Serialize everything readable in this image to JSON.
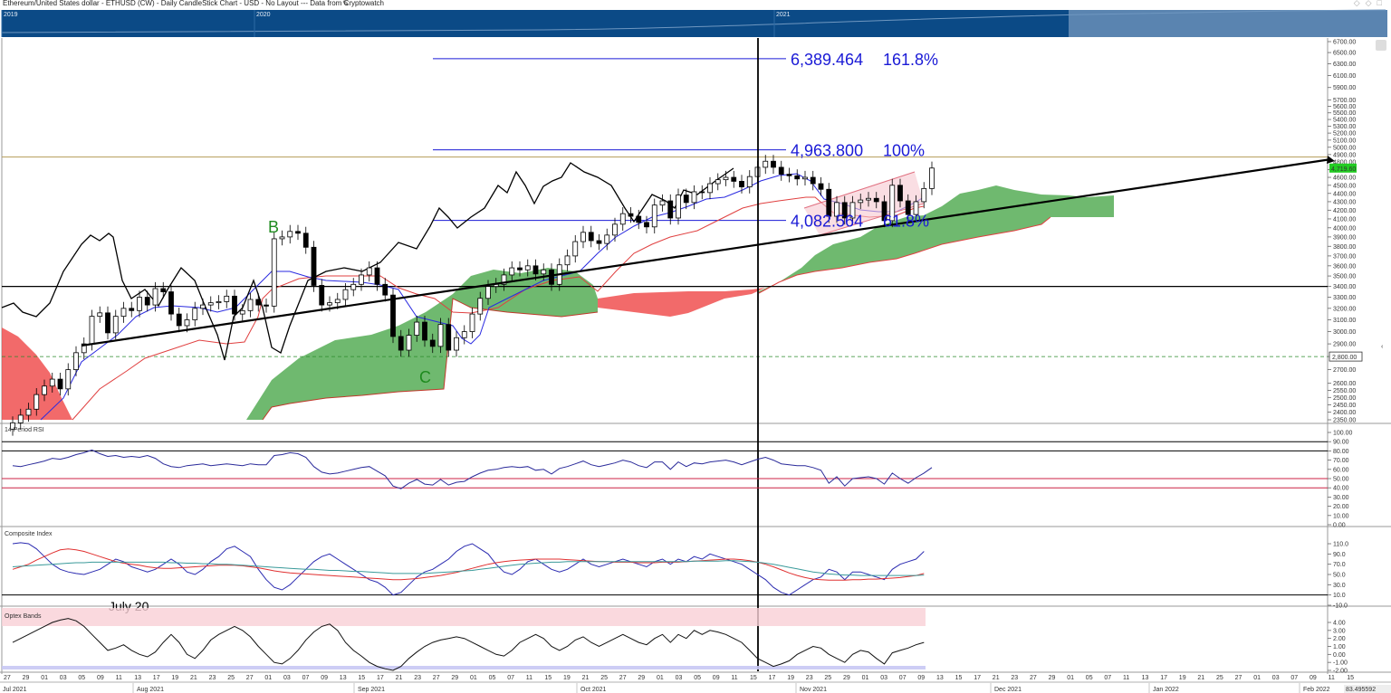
{
  "header": {
    "title": "Ethereum/United States dollar - ETHUSD (CW) - Daily CandleStick Chart - USD - No Layout --- Data from Cryptowatch"
  },
  "navigator": {
    "years": [
      "2019",
      "2020",
      "2021"
    ]
  },
  "price_pane": {
    "current_price_label": "4,719.60",
    "horizontal_line_label": "2,800.00",
    "annotations": {
      "fib1_price": "6,389.464",
      "fib1_pct": "161.8%",
      "fib2_price": "4,963.800",
      "fib2_pct": "100%",
      "fib3_price": "4,082.564",
      "fib3_pct": "61.8%",
      "wave_b": "B",
      "wave_c": "C"
    }
  },
  "rsi_pane": {
    "title": "14 Period RSI"
  },
  "composite_pane": {
    "title": "Composite Index",
    "note": "July 20"
  },
  "optex_pane": {
    "title": "Optex Bands"
  },
  "corner_readout": "83.495592",
  "colors": {
    "candle_up": "#ffffff",
    "candle_down": "#000000",
    "kijun": "#e04040",
    "tenkan": "#2a2ae0",
    "chikou": "#000000",
    "cloud_bull": "#3fa23f",
    "cloud_bear": "#f05050",
    "fib": "#1a1ad6",
    "rsi_line": "#2a2a9a",
    "composite_line": "#2a2ab0",
    "fast_ma": "#e03030",
    "slow_ma": "#3a9a9a"
  },
  "chart_data": [
    {
      "type": "candlestick",
      "title": "ETHUSD Daily",
      "ylim": [
        2350,
        6700
      ],
      "y_ticks": [
        2350,
        2400,
        2450,
        2500,
        2550,
        2600,
        2700,
        2800,
        2900,
        3000,
        3100,
        3200,
        3300,
        3400,
        3500,
        3600,
        3700,
        3800,
        3900,
        4000,
        4100,
        4200,
        4300,
        4400,
        4500,
        4600,
        4700,
        4800,
        4900,
        5000,
        5100,
        5200,
        5300,
        5400,
        5500,
        5600,
        5700,
        5900,
        6100,
        6300,
        6500,
        6700
      ],
      "y_tick_labels": [
        "2350.00",
        "2400.00",
        "2450.00",
        "2500.00",
        "2550.00",
        "2600.00",
        "2700.00",
        "2800.00",
        "2900.00",
        "3000.00",
        "3100.00",
        "3200.00",
        "3300.00",
        "3400.00",
        "3500.00",
        "3600.00",
        "3700.00",
        "3800.00",
        "3900.00",
        "4000.00",
        "4100.00",
        "4200.00",
        "4300.00",
        "4400.00",
        "4500.00",
        "4600.00",
        "4700.00",
        "4800.00",
        "4900.00",
        "5000.00",
        "5100.00",
        "5200.00",
        "5300.00",
        "5400.00",
        "5500.00",
        "5600.00",
        "5700.00",
        "5900.00",
        "6100.00",
        "6300.00",
        "6500.00",
        "6700.00"
      ],
      "x_day_labels": [
        "27",
        "29",
        "01",
        "03",
        "05",
        "09",
        "11",
        "13",
        "17",
        "19",
        "21",
        "23",
        "25",
        "27",
        "01",
        "03",
        "07",
        "09",
        "13",
        "15",
        "17",
        "21",
        "23",
        "27",
        "29",
        "01",
        "05",
        "07",
        "11",
        "15",
        "19",
        "21",
        "25",
        "27",
        "29",
        "01",
        "03",
        "05",
        "09",
        "11",
        "15",
        "17",
        "19",
        "23",
        "25",
        "29",
        "01",
        "03",
        "07",
        "09",
        "13",
        "15",
        "17",
        "21",
        "23",
        "27",
        "29",
        "01",
        "05",
        "07",
        "11",
        "13",
        "17",
        "19",
        "21",
        "25",
        "27",
        "01",
        "03",
        "07",
        "09",
        "11",
        "15"
      ],
      "x_month_labels": [
        "Jul 2021",
        "Aug 2021",
        "Sep 2021",
        "Oct 2021",
        "Nov 2021",
        "Dec 2021",
        "Jan 2022",
        "Feb 2022"
      ],
      "horizontal_lines": [
        3400,
        4867,
        2800
      ],
      "fib_levels": [
        6389.464,
        4963.8,
        4082.564
      ],
      "candles_close": [
        2330,
        2380,
        2420,
        2520,
        2580,
        2630,
        2560,
        2700,
        2830,
        2900,
        3130,
        3160,
        2990,
        3130,
        3200,
        3180,
        3300,
        3230,
        3380,
        3350,
        3150,
        3050,
        3100,
        3200,
        3230,
        3250,
        3260,
        3310,
        3150,
        3180,
        3280,
        3230,
        3220,
        3880,
        3900,
        3960,
        3940,
        3790,
        3410,
        3230,
        3250,
        3280,
        3370,
        3420,
        3510,
        3580,
        3420,
        3320,
        2960,
        2850,
        2970,
        3080,
        2930,
        2880,
        3060,
        2850,
        2950,
        3000,
        3150,
        3290,
        3400,
        3420,
        3510,
        3580,
        3560,
        3600,
        3520,
        3560,
        3420,
        3610,
        3700,
        3850,
        3950,
        3860,
        3830,
        3920,
        4040,
        4160,
        4130,
        4060,
        4010,
        4260,
        4310,
        4110,
        4380,
        4290,
        4420,
        4410,
        4520,
        4570,
        4600,
        4550,
        4480,
        4610,
        4730,
        4810,
        4730,
        4640,
        4620,
        4580,
        4600,
        4520,
        4450,
        4130,
        4290,
        4110,
        4290,
        4320,
        4340,
        4300,
        4080,
        4500,
        4310,
        4150,
        4300,
        4460,
        4720
      ]
    },
    {
      "type": "line",
      "title": "14 Period RSI",
      "ylim": [
        0,
        100
      ],
      "y_ticks": [
        0,
        10,
        20,
        30,
        40,
        50,
        60,
        70,
        80,
        90,
        100
      ],
      "y_tick_labels": [
        "0.00",
        "10.00",
        "20.00",
        "30.00",
        "40.00",
        "50.00",
        "60.00",
        "70.00",
        "80.00",
        "90.00",
        "100.00"
      ],
      "reference_lines": [
        90,
        80,
        50,
        40
      ],
      "values": [
        64,
        63,
        65,
        67,
        69,
        72,
        71,
        73,
        76,
        78,
        81,
        77,
        74,
        75,
        73,
        74,
        73,
        75,
        72,
        66,
        63,
        62,
        64,
        65,
        66,
        64,
        65,
        66,
        65,
        64,
        66,
        65,
        65,
        75,
        76,
        78,
        77,
        73,
        63,
        57,
        55,
        56,
        58,
        60,
        62,
        63,
        58,
        53,
        42,
        39,
        45,
        49,
        44,
        43,
        49,
        43,
        46,
        47,
        52,
        56,
        59,
        60,
        62,
        63,
        62,
        63,
        59,
        60,
        55,
        61,
        63,
        66,
        69,
        65,
        63,
        65,
        67,
        70,
        68,
        64,
        62,
        68,
        68,
        60,
        68,
        63,
        67,
        66,
        68,
        69,
        70,
        68,
        65,
        68,
        71,
        73,
        70,
        66,
        65,
        64,
        64,
        62,
        59,
        45,
        52,
        42,
        50,
        51,
        52,
        50,
        44,
        56,
        50,
        45,
        51,
        56,
        62
      ]
    },
    {
      "type": "line",
      "title": "Composite Index",
      "ylim": [
        -10,
        110
      ],
      "y_ticks": [
        -10,
        10,
        30,
        50,
        70,
        90,
        110
      ],
      "y_tick_labels": [
        "-10.0",
        "10.0",
        "30.0",
        "50.0",
        "70.0",
        "90.0",
        "110.0"
      ],
      "reference_lines": [
        10
      ],
      "series": [
        {
          "values": [
            110,
            112,
            110,
            100,
            85,
            70,
            60,
            55,
            52,
            50,
            55,
            60,
            70,
            80,
            75,
            65,
            60,
            55,
            60,
            70,
            80,
            70,
            55,
            50,
            60,
            75,
            85,
            100,
            105,
            95,
            85,
            60,
            40,
            25,
            20,
            30,
            45,
            60,
            75,
            85,
            90,
            80,
            70,
            60,
            50,
            40,
            35,
            25,
            10,
            15,
            30,
            45,
            55,
            60,
            70,
            80,
            95,
            105,
            110,
            100,
            90,
            70,
            55,
            50,
            60,
            75,
            80,
            70,
            60,
            55,
            60,
            70,
            80,
            70,
            65,
            70,
            75,
            80,
            75,
            70,
            65,
            75,
            80,
            70,
            80,
            75,
            85,
            80,
            90,
            85,
            80,
            75,
            70,
            60,
            50,
            40,
            25,
            15,
            10,
            20,
            30,
            40,
            45,
            60,
            55,
            40,
            55,
            55,
            50,
            45,
            40,
            60,
            70,
            75,
            80,
            95
          ]
        },
        {
          "values": [
            60,
            65,
            70,
            78,
            85,
            92,
            98,
            100,
            98,
            95,
            90,
            85,
            80,
            75,
            72,
            70,
            68,
            65,
            63,
            62,
            62,
            63,
            64,
            65,
            66,
            67,
            68,
            68,
            68,
            67,
            65,
            63,
            60,
            57,
            55,
            53,
            52,
            51,
            50,
            49,
            48,
            47,
            46,
            45,
            44,
            43,
            42,
            41,
            40,
            40,
            41,
            42,
            44,
            46,
            48,
            51,
            54,
            58,
            62,
            66,
            70,
            73,
            75,
            77,
            78,
            79,
            80,
            80,
            80,
            80,
            79,
            78,
            77,
            76,
            75,
            75,
            74,
            74,
            74,
            73,
            73,
            73,
            74,
            74,
            74,
            75,
            76,
            77,
            78,
            79,
            80,
            80,
            79,
            77,
            74,
            70,
            65,
            59,
            53,
            48,
            44,
            41,
            40,
            39,
            39,
            39,
            40,
            40,
            41,
            41,
            42,
            43,
            44,
            46,
            48,
            52
          ]
        },
        {
          "values": [
            65,
            66,
            67,
            68,
            69,
            70,
            71,
            72,
            73,
            73,
            74,
            74,
            74,
            74,
            74,
            74,
            74,
            74,
            74,
            74,
            73,
            73,
            72,
            72,
            71,
            71,
            70,
            70,
            69,
            68,
            67,
            66,
            65,
            64,
            63,
            62,
            61,
            60,
            60,
            59,
            58,
            58,
            57,
            56,
            56,
            55,
            54,
            53,
            52,
            52,
            52,
            52,
            52,
            53,
            54,
            55,
            56,
            57,
            58,
            60,
            62,
            64,
            66,
            68,
            70,
            71,
            72,
            73,
            74,
            74,
            75,
            75,
            75,
            75,
            75,
            75,
            75,
            75,
            75,
            75,
            75,
            75,
            75,
            75,
            75,
            75,
            76,
            76,
            76,
            76,
            77,
            77,
            76,
            75,
            74,
            72,
            70,
            67,
            64,
            61,
            58,
            55,
            53,
            51,
            50,
            49,
            49,
            48,
            48,
            48,
            48,
            48,
            48,
            48,
            48,
            49
          ]
        }
      ]
    },
    {
      "type": "line",
      "title": "Optex Bands",
      "ylim": [
        -2,
        4
      ],
      "y_ticks": [
        -2,
        -1,
        0,
        1,
        2,
        3,
        4
      ],
      "y_tick_labels": [
        "-2.00",
        "-1.00",
        "0.00",
        "1.00",
        "2.00",
        "3.00",
        "4.00"
      ],
      "values": [
        1.5,
        2.0,
        2.5,
        3.0,
        3.5,
        4.0,
        4.3,
        4.5,
        4.2,
        3.5,
        2.5,
        1.5,
        0.5,
        0.8,
        1.2,
        0.5,
        0.0,
        -0.3,
        0.3,
        1.5,
        2.5,
        1.5,
        0.0,
        -0.5,
        0.5,
        1.8,
        2.5,
        3.0,
        3.5,
        3.0,
        2.2,
        1.0,
        0.0,
        -1.0,
        -1.2,
        -0.5,
        0.5,
        1.8,
        2.8,
        3.5,
        3.8,
        3.0,
        1.5,
        0.5,
        -0.2,
        -1.0,
        -1.5,
        -1.8,
        -2.0,
        -1.5,
        -0.5,
        0.3,
        1.0,
        1.5,
        1.8,
        2.0,
        2.2,
        2.0,
        1.5,
        1.0,
        0.5,
        0.0,
        -0.2,
        0.5,
        1.5,
        2.0,
        2.5,
        2.0,
        1.0,
        0.5,
        1.0,
        1.8,
        2.2,
        1.5,
        1.0,
        1.5,
        2.0,
        2.5,
        2.0,
        1.5,
        1.2,
        2.0,
        2.5,
        1.5,
        2.5,
        2.0,
        3.0,
        2.5,
        3.0,
        2.8,
        2.5,
        2.0,
        1.5,
        0.5,
        -0.5,
        -1.0,
        -1.5,
        -1.2,
        -0.8,
        0.0,
        0.5,
        1.0,
        0.8,
        0.0,
        -0.5,
        -1.0,
        0.0,
        0.5,
        0.3,
        -0.5,
        -1.2,
        0.2,
        0.5,
        0.8,
        1.2,
        1.5
      ]
    }
  ]
}
